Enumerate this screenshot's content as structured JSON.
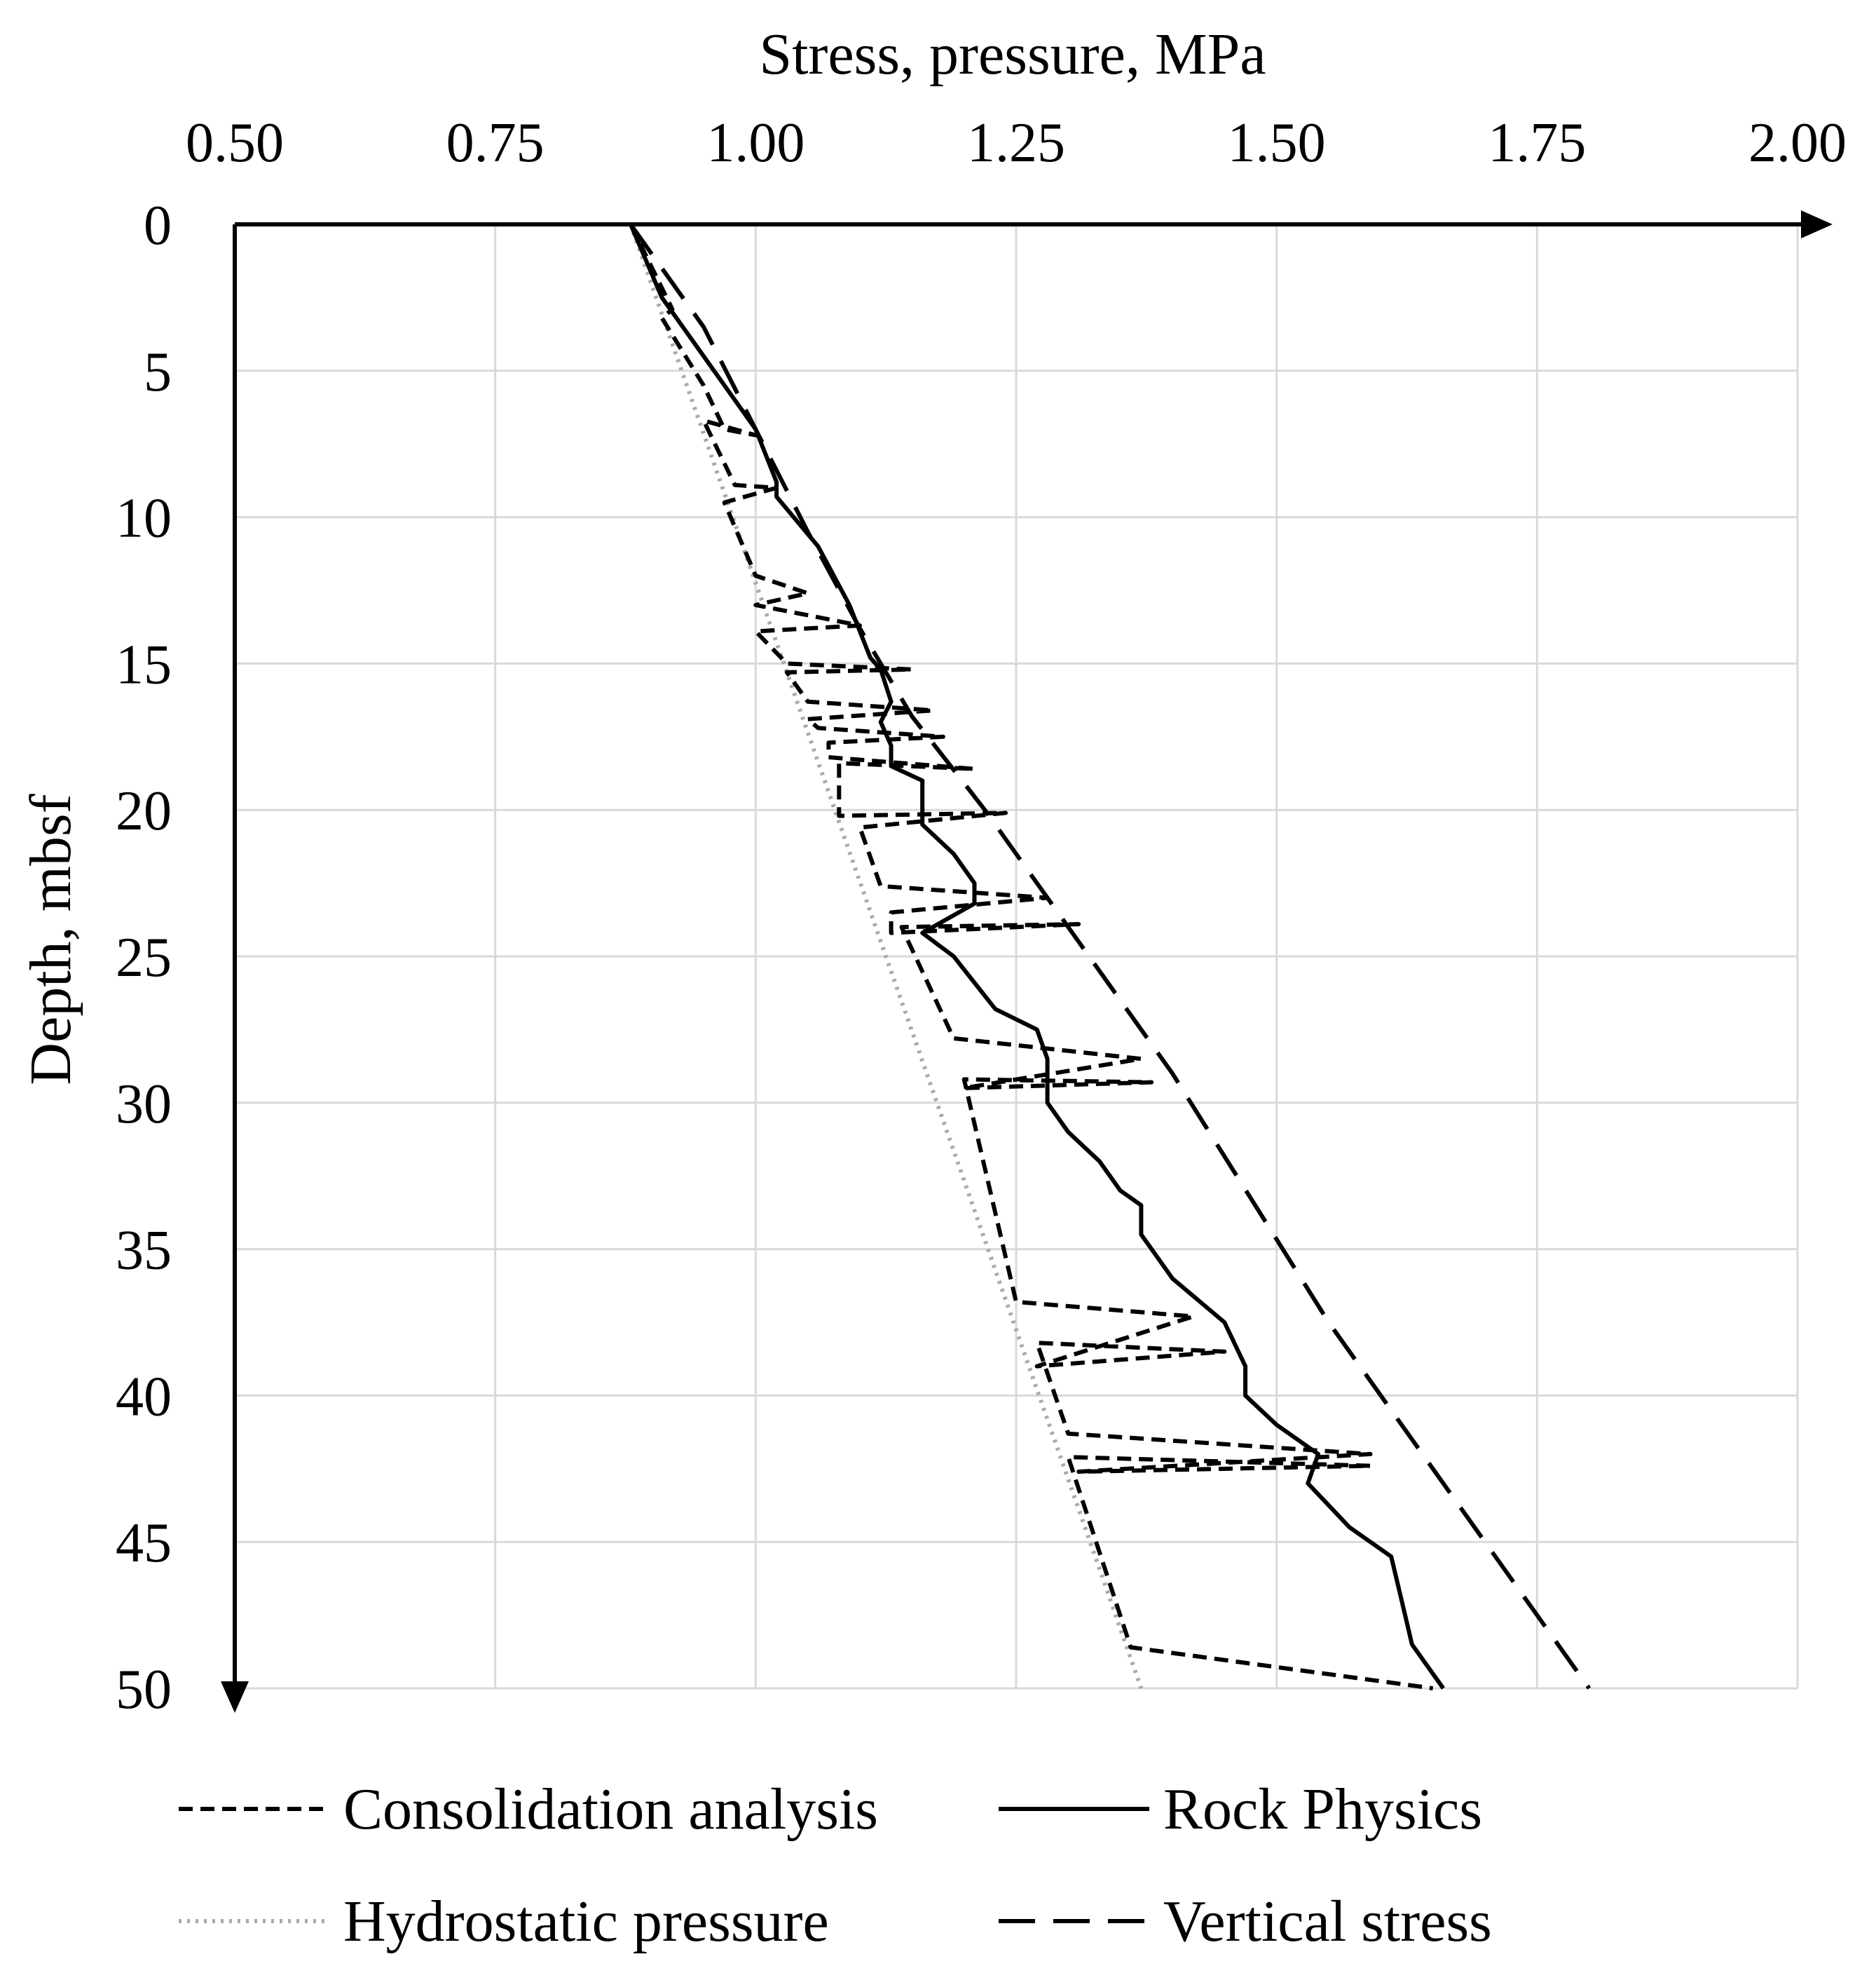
{
  "chart_data": {
    "type": "line",
    "title": "",
    "xlabel": "Stress, pressure, MPa",
    "ylabel": "Depth, mbsf",
    "x_axis_position": "top",
    "y_axis_inverted": true,
    "xlim": [
      0.5,
      2.0
    ],
    "ylim": [
      0,
      50
    ],
    "x_ticks": [
      "0.50",
      "0.75",
      "1.00",
      "1.25",
      "1.50",
      "1.75",
      "2.00"
    ],
    "x_tick_values": [
      0.5,
      0.75,
      1.0,
      1.25,
      1.5,
      1.75,
      2.0
    ],
    "y_ticks": [
      "0",
      "5",
      "10",
      "15",
      "20",
      "25",
      "30",
      "35",
      "40",
      "45",
      "50"
    ],
    "y_tick_values": [
      0,
      5,
      10,
      15,
      20,
      25,
      30,
      35,
      40,
      45,
      50
    ],
    "grid": true,
    "legend_position": "bottom",
    "series": [
      {
        "name": "Consolidation analysis",
        "style": "short-dash",
        "color": "#000000",
        "points": [
          [
            0.88,
            0.0
          ],
          [
            0.92,
            2.9
          ],
          [
            0.91,
            3.2
          ],
          [
            0.95,
            5.5
          ],
          [
            0.97,
            7.0
          ],
          [
            1.0,
            7.2
          ],
          [
            0.95,
            6.7
          ],
          [
            0.98,
            8.9
          ],
          [
            1.02,
            9.0
          ],
          [
            0.97,
            9.5
          ],
          [
            1.0,
            12.0
          ],
          [
            1.05,
            12.6
          ],
          [
            1.0,
            13.0
          ],
          [
            1.1,
            13.7
          ],
          [
            1.0,
            13.9
          ],
          [
            1.03,
            15.0
          ],
          [
            1.15,
            15.2
          ],
          [
            1.03,
            15.3
          ],
          [
            1.05,
            16.3
          ],
          [
            1.17,
            16.6
          ],
          [
            1.05,
            16.9
          ],
          [
            1.06,
            17.2
          ],
          [
            1.18,
            17.5
          ],
          [
            1.07,
            17.7
          ],
          [
            1.07,
            18.2
          ],
          [
            1.21,
            18.6
          ],
          [
            1.08,
            18.4
          ],
          [
            1.08,
            20.2
          ],
          [
            1.24,
            20.1
          ],
          [
            1.1,
            20.6
          ],
          [
            1.12,
            22.6
          ],
          [
            1.28,
            23.0
          ],
          [
            1.13,
            23.5
          ],
          [
            1.13,
            24.2
          ],
          [
            1.31,
            23.9
          ],
          [
            1.14,
            24.0
          ],
          [
            1.19,
            27.8
          ],
          [
            1.37,
            28.5
          ],
          [
            1.2,
            29.5
          ],
          [
            1.38,
            29.3
          ],
          [
            1.2,
            29.2
          ],
          [
            1.25,
            36.8
          ],
          [
            1.42,
            37.3
          ],
          [
            1.27,
            39.0
          ],
          [
            1.45,
            38.5
          ],
          [
            1.27,
            38.2
          ],
          [
            1.3,
            41.3
          ],
          [
            1.59,
            42.0
          ],
          [
            1.31,
            42.6
          ],
          [
            1.59,
            42.4
          ],
          [
            1.3,
            42.1
          ],
          [
            1.36,
            48.6
          ],
          [
            1.65,
            50.0
          ]
        ]
      },
      {
        "name": "Rock Physics",
        "style": "solid",
        "color": "#000000",
        "points": [
          [
            0.88,
            0.0
          ],
          [
            0.91,
            2.5
          ],
          [
            0.95,
            4.5
          ],
          [
            1.0,
            7.0
          ],
          [
            1.02,
            8.8
          ],
          [
            1.02,
            9.3
          ],
          [
            1.06,
            11.0
          ],
          [
            1.09,
            13.0
          ],
          [
            1.11,
            14.8
          ],
          [
            1.12,
            15.2
          ],
          [
            1.13,
            16.3
          ],
          [
            1.12,
            17.0
          ],
          [
            1.13,
            17.8
          ],
          [
            1.13,
            18.5
          ],
          [
            1.16,
            19.0
          ],
          [
            1.16,
            20.5
          ],
          [
            1.19,
            21.5
          ],
          [
            1.21,
            22.5
          ],
          [
            1.21,
            23.2
          ],
          [
            1.16,
            24.2
          ],
          [
            1.19,
            25.0
          ],
          [
            1.23,
            26.8
          ],
          [
            1.27,
            27.5
          ],
          [
            1.28,
            28.5
          ],
          [
            1.28,
            30.0
          ],
          [
            1.3,
            31.0
          ],
          [
            1.33,
            32.0
          ],
          [
            1.35,
            33.0
          ],
          [
            1.37,
            33.5
          ],
          [
            1.37,
            34.5
          ],
          [
            1.38,
            35.0
          ],
          [
            1.4,
            36.0
          ],
          [
            1.45,
            37.5
          ],
          [
            1.47,
            39.0
          ],
          [
            1.47,
            40.0
          ],
          [
            1.5,
            41.0
          ],
          [
            1.54,
            42.0
          ],
          [
            1.53,
            43.0
          ],
          [
            1.57,
            44.5
          ],
          [
            1.61,
            45.5
          ],
          [
            1.62,
            47.0
          ],
          [
            1.63,
            48.5
          ],
          [
            1.66,
            50.0
          ]
        ]
      },
      {
        "name": "Hydrostatic pressure",
        "style": "dotted",
        "color": "#aaaaaa",
        "points": [
          [
            0.88,
            0.0
          ],
          [
            1.37,
            50.0
          ]
        ]
      },
      {
        "name": "Vertical stress",
        "style": "long-dash",
        "color": "#000000",
        "points": [
          [
            0.88,
            0.0
          ],
          [
            0.95,
            3.5
          ],
          [
            1.0,
            7.0
          ],
          [
            1.05,
            10.5
          ],
          [
            1.1,
            13.8
          ],
          [
            1.15,
            16.8
          ],
          [
            1.22,
            20.0
          ],
          [
            1.3,
            24.0
          ],
          [
            1.4,
            29.0
          ],
          [
            1.55,
            37.5
          ],
          [
            1.7,
            45.0
          ],
          [
            1.8,
            50.0
          ]
        ]
      }
    ]
  }
}
